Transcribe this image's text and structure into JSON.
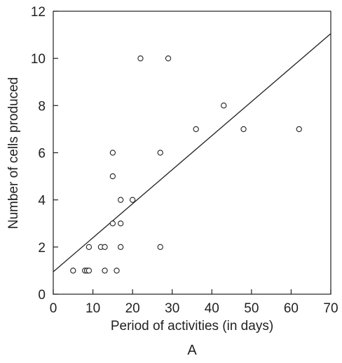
{
  "chart_data": {
    "type": "scatter",
    "xlabel": "Period of activities (in days)",
    "ylabel": "Number of cells produced",
    "panel_label": "A",
    "xlim": [
      0,
      70
    ],
    "ylim": [
      0,
      12
    ],
    "x_ticks": [
      "0",
      "10",
      "20",
      "30",
      "40",
      "50",
      "60",
      "70"
    ],
    "y_ticks": [
      "0",
      "2",
      "4",
      "6",
      "8",
      "10",
      "12"
    ],
    "grid": false,
    "legend": "none",
    "points": [
      {
        "x": 5,
        "y": 1
      },
      {
        "x": 8,
        "y": 1
      },
      {
        "x": 8.5,
        "y": 1
      },
      {
        "x": 9,
        "y": 1
      },
      {
        "x": 13,
        "y": 1
      },
      {
        "x": 16,
        "y": 1
      },
      {
        "x": 9,
        "y": 2
      },
      {
        "x": 12,
        "y": 2
      },
      {
        "x": 13,
        "y": 2
      },
      {
        "x": 17,
        "y": 2
      },
      {
        "x": 27,
        "y": 2
      },
      {
        "x": 15,
        "y": 3
      },
      {
        "x": 17,
        "y": 3
      },
      {
        "x": 17,
        "y": 4
      },
      {
        "x": 20,
        "y": 4
      },
      {
        "x": 15,
        "y": 5
      },
      {
        "x": 15,
        "y": 6
      },
      {
        "x": 27,
        "y": 6
      },
      {
        "x": 36,
        "y": 7
      },
      {
        "x": 48,
        "y": 7
      },
      {
        "x": 62,
        "y": 7
      },
      {
        "x": 43,
        "y": 8
      },
      {
        "x": 22,
        "y": 10
      },
      {
        "x": 29,
        "y": 10
      }
    ],
    "trendline": {
      "x": [
        0,
        70
      ],
      "y": [
        0.95,
        11.05
      ]
    },
    "colors": {
      "ink": "#231f20",
      "marker_fill": "#ffffff"
    }
  }
}
